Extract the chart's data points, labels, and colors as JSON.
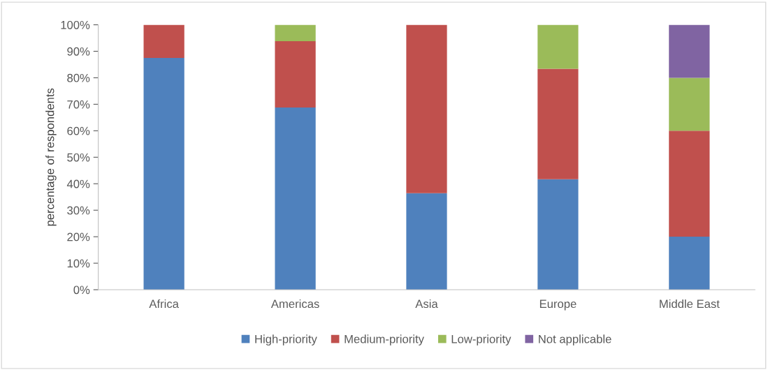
{
  "chart_data": {
    "type": "bar",
    "stacked": true,
    "ylabel": "percentage of respondents",
    "categories": [
      "Africa",
      "Americas",
      "Asia",
      "Europe",
      "Middle East"
    ],
    "series": [
      {
        "name": "High-priority",
        "color": "#4f81bd",
        "values": [
          87.5,
          68.8,
          36.4,
          41.7,
          20
        ]
      },
      {
        "name": "Medium-priority",
        "color": "#c0504d",
        "values": [
          12.5,
          25,
          63.6,
          41.7,
          40
        ]
      },
      {
        "name": "Low-priority",
        "color": "#9bbb59",
        "values": [
          0,
          6.2,
          0,
          16.6,
          20
        ]
      },
      {
        "name": "Not applicable",
        "color": "#8064a2",
        "values": [
          0,
          0,
          0,
          0,
          20
        ]
      }
    ],
    "ylim": [
      0,
      100
    ],
    "yticks": [
      {
        "value": 0,
        "label": "0%"
      },
      {
        "value": 10,
        "label": "10%"
      },
      {
        "value": 20,
        "label": "20%"
      },
      {
        "value": 30,
        "label": "30%"
      },
      {
        "value": 40,
        "label": "40%"
      },
      {
        "value": 50,
        "label": "50%"
      },
      {
        "value": 60,
        "label": "60%"
      },
      {
        "value": 70,
        "label": "70%"
      },
      {
        "value": 80,
        "label": "80%"
      },
      {
        "value": 90,
        "label": "90%"
      },
      {
        "value": 100,
        "label": "100%"
      }
    ],
    "grid": false,
    "legend": "bottom"
  }
}
